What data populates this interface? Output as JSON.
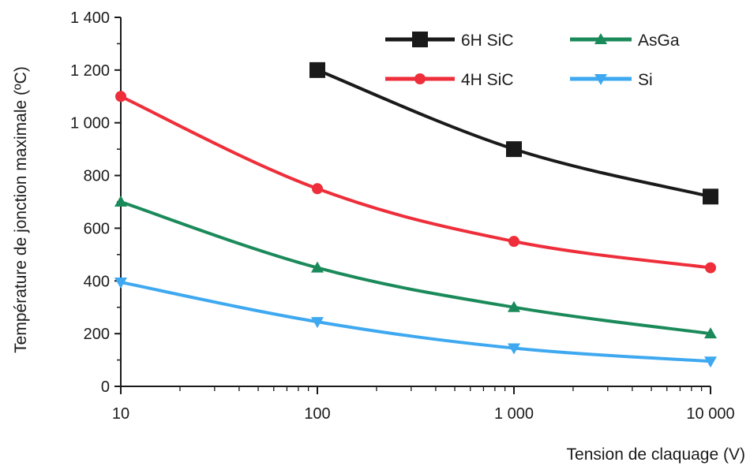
{
  "chart_data": {
    "type": "line",
    "x_scale": "log",
    "x": [
      10,
      100,
      1000,
      10000
    ],
    "x_tick_labels": [
      "10",
      "100",
      "1 000",
      "10 000"
    ],
    "xlim": [
      10,
      10000
    ],
    "y_tick_values": [
      0,
      200,
      400,
      600,
      800,
      1000,
      1200,
      1400
    ],
    "y_tick_labels": [
      "0",
      "200",
      "400",
      "600",
      "800",
      "1 000",
      "1 200",
      "1 400"
    ],
    "ylim": [
      0,
      1400
    ],
    "xlabel": "Tension de claquage (V)",
    "ylabel": "Température de jonction maximale (ºC)",
    "grid": false,
    "legend_position": "top-right",
    "series": [
      {
        "name": "6H SiC",
        "color": "#1a1a1a",
        "marker": "square",
        "x": [
          100,
          1000,
          10000
        ],
        "values": [
          1200,
          900,
          720
        ]
      },
      {
        "name": "AsGa",
        "color": "#1b8a5a",
        "marker": "triangle-up",
        "x": [
          10,
          100,
          1000,
          10000
        ],
        "values": [
          700,
          450,
          300,
          200
        ]
      },
      {
        "name": "4H SiC",
        "color": "#ee2e3a",
        "marker": "circle",
        "x": [
          10,
          100,
          1000,
          10000
        ],
        "values": [
          1100,
          750,
          550,
          450
        ]
      },
      {
        "name": "Si",
        "color": "#3ea8f0",
        "marker": "triangle-down",
        "x": [
          10,
          100,
          1000,
          10000
        ],
        "values": [
          395,
          245,
          145,
          95
        ]
      }
    ]
  }
}
